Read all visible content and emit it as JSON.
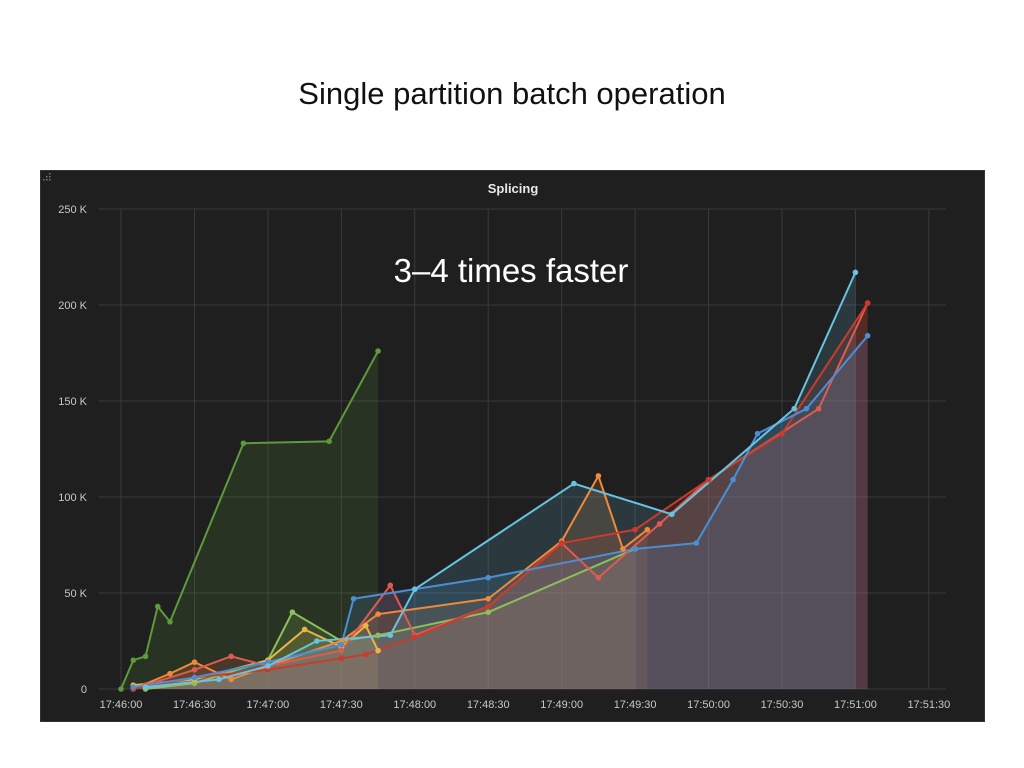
{
  "slide": {
    "title": "Single partition batch operation",
    "annotation": "3–4 times faster"
  },
  "panel": {
    "title": "Splicing",
    "background": "#1f1f20",
    "grid_color": "#3a3a3c",
    "tick_color": "#c8c8c8"
  },
  "chart_data": {
    "type": "line",
    "title": "Splicing",
    "xlabel": "",
    "ylabel": "",
    "ylim": [
      0,
      250000
    ],
    "xlim": [
      "17:45:51",
      "17:51:37"
    ],
    "grid": true,
    "x_ticks": [
      "17:46:00",
      "17:46:30",
      "17:47:00",
      "17:47:30",
      "17:48:00",
      "17:48:30",
      "17:49:00",
      "17:49:30",
      "17:50:00",
      "17:50:30",
      "17:51:00",
      "17:51:30"
    ],
    "y_ticks": [
      {
        "value": 0,
        "label": "0"
      },
      {
        "value": 50000,
        "label": "50 K"
      },
      {
        "value": 100000,
        "label": "100 K"
      },
      {
        "value": 150000,
        "label": "150 K"
      },
      {
        "value": 200000,
        "label": "200 K"
      },
      {
        "value": 250000,
        "label": "250 K"
      }
    ],
    "series": [
      {
        "color": "#5e9a3c",
        "points": [
          [
            "17:46:00",
            0
          ],
          [
            "17:46:05",
            15000
          ],
          [
            "17:46:10",
            17000
          ],
          [
            "17:46:15",
            43000
          ],
          [
            "17:46:20",
            35000
          ],
          [
            "17:46:50",
            128000
          ],
          [
            "17:47:25",
            129000
          ],
          [
            "17:47:45",
            176000
          ]
        ]
      },
      {
        "color": "#8fbf5a",
        "points": [
          [
            "17:46:10",
            0
          ],
          [
            "17:46:30",
            3000
          ],
          [
            "17:47:00",
            15000
          ],
          [
            "17:47:10",
            40000
          ],
          [
            "17:47:30",
            25000
          ],
          [
            "17:47:45",
            28000
          ],
          [
            "17:48:30",
            40000
          ],
          [
            "17:49:30",
            73000
          ]
        ]
      },
      {
        "color": "#e8b54a",
        "points": [
          [
            "17:46:05",
            2000
          ],
          [
            "17:46:30",
            5000
          ],
          [
            "17:47:00",
            15000
          ],
          [
            "17:47:15",
            31000
          ],
          [
            "17:47:30",
            22000
          ],
          [
            "17:47:40",
            33000
          ],
          [
            "17:47:45",
            20000
          ]
        ]
      },
      {
        "color": "#f08a3a",
        "points": [
          [
            "17:46:05",
            0
          ],
          [
            "17:46:20",
            8000
          ],
          [
            "17:46:30",
            14000
          ],
          [
            "17:46:45",
            5000
          ],
          [
            "17:47:00",
            12000
          ],
          [
            "17:47:30",
            25000
          ],
          [
            "17:47:45",
            39000
          ],
          [
            "17:48:30",
            47000
          ],
          [
            "17:49:00",
            77000
          ],
          [
            "17:49:15",
            111000
          ],
          [
            "17:49:25",
            73000
          ],
          [
            "17:49:35",
            83000
          ]
        ]
      },
      {
        "color": "#e05a4f",
        "points": [
          [
            "17:46:10",
            2000
          ],
          [
            "17:46:30",
            10000
          ],
          [
            "17:46:45",
            17000
          ],
          [
            "17:47:00",
            12000
          ],
          [
            "17:47:30",
            20000
          ],
          [
            "17:47:50",
            54000
          ],
          [
            "17:48:00",
            28000
          ],
          [
            "17:48:30",
            43000
          ],
          [
            "17:49:00",
            76000
          ],
          [
            "17:49:15",
            58000
          ],
          [
            "17:49:40",
            86000
          ],
          [
            "17:50:00",
            109000
          ],
          [
            "17:50:45",
            146000
          ],
          [
            "17:51:05",
            201000
          ]
        ]
      },
      {
        "color": "#c93b2c",
        "points": [
          [
            "17:46:05",
            0
          ],
          [
            "17:46:30",
            6000
          ],
          [
            "17:47:00",
            10000
          ],
          [
            "17:47:30",
            16000
          ],
          [
            "17:47:40",
            18000
          ],
          [
            "17:48:00",
            27000
          ],
          [
            "17:48:30",
            43000
          ],
          [
            "17:49:00",
            76000
          ],
          [
            "17:49:30",
            83000
          ],
          [
            "17:50:00",
            109000
          ],
          [
            "17:50:30",
            133000
          ],
          [
            "17:51:05",
            201000
          ]
        ]
      },
      {
        "color": "#4a8fd4",
        "points": [
          [
            "17:46:05",
            1000
          ],
          [
            "17:46:30",
            6000
          ],
          [
            "17:47:00",
            14000
          ],
          [
            "17:47:30",
            23000
          ],
          [
            "17:47:35",
            47000
          ],
          [
            "17:48:00",
            52000
          ],
          [
            "17:48:30",
            58000
          ],
          [
            "17:49:30",
            73000
          ],
          [
            "17:49:55",
            76000
          ],
          [
            "17:50:10",
            109000
          ],
          [
            "17:50:20",
            133000
          ],
          [
            "17:50:40",
            146000
          ],
          [
            "17:51:05",
            184000
          ]
        ]
      },
      {
        "color": "#68c3e0",
        "points": [
          [
            "17:46:10",
            1000
          ],
          [
            "17:46:40",
            5000
          ],
          [
            "17:47:00",
            12000
          ],
          [
            "17:47:20",
            25000
          ],
          [
            "17:47:50",
            28000
          ],
          [
            "17:48:00",
            52000
          ],
          [
            "17:49:05",
            107000
          ],
          [
            "17:49:45",
            91000
          ],
          [
            "17:50:35",
            146000
          ],
          [
            "17:51:00",
            217000
          ]
        ]
      }
    ]
  }
}
